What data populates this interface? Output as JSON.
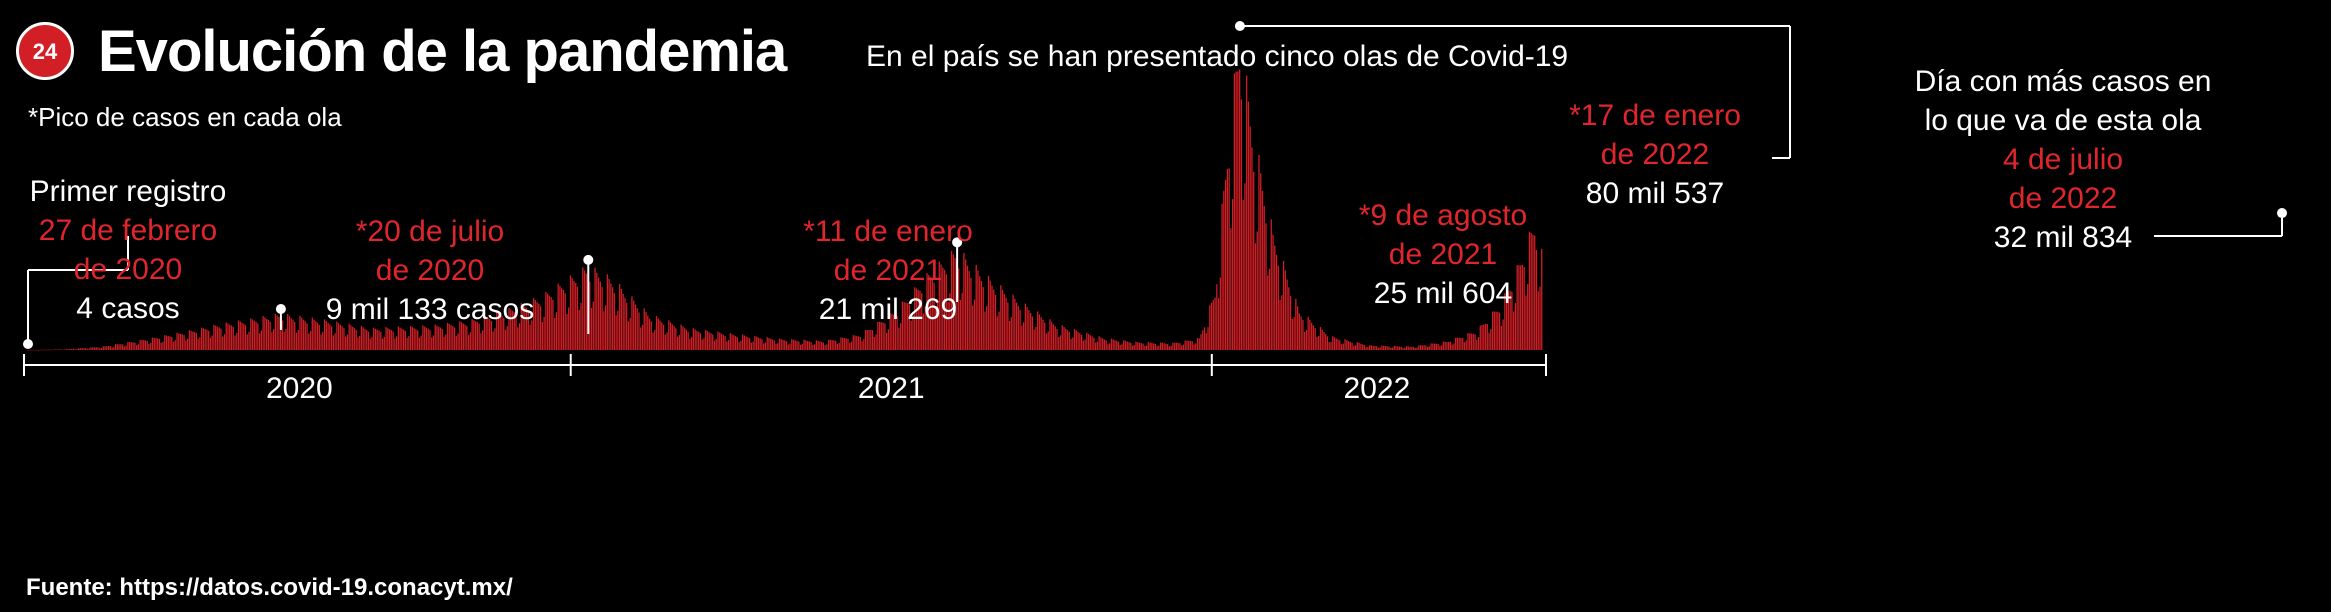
{
  "header": {
    "logo_text": "24",
    "title": "Evolución de la pandemia",
    "subtitle": "En el país se han presentado cinco olas de Covid-19",
    "note": "*Pico de casos en cada ola"
  },
  "annotations": {
    "first": {
      "l1": "Primer registro",
      "l2": "27 de febrero",
      "l3": "de 2020",
      "l4": "4 casos"
    },
    "wave1": {
      "l1": "*20 de julio",
      "l2": "de 2020",
      "l3": "9 mil 133 casos"
    },
    "wave2": {
      "l1": "*11 de enero",
      "l2": "de 2021",
      "l3": "21 mil 269"
    },
    "wave3": {
      "l1": "*9 de agosto",
      "l2": "de 2021",
      "l3": "25 mil 604"
    },
    "wave4": {
      "l1": "*17 de enero",
      "l2": "de 2022",
      "l3": "80 mil 537"
    },
    "wave5": {
      "l1": "Día con más casos en",
      "l2": "lo que va de esta ola",
      "l3": "4 de julio",
      "l4": "de 2022",
      "l5": "32 mil 834"
    }
  },
  "source": "Fuente: https://datos.covid-19.conacyt.mx/",
  "colors": {
    "bar": "#d21f26",
    "label_red": "#e0262d",
    "background": "#000000"
  },
  "chart_data": {
    "type": "bar",
    "title": "Evolución de la pandemia",
    "subtitle": "En el país se han presentado cinco olas de Covid-19",
    "x_start": "2020-02-27",
    "x_end": "2022-07-08",
    "year_labels": [
      "2020",
      "2021",
      "2022"
    ],
    "ylim": [
      0,
      82000
    ],
    "grid": false,
    "anchors": [
      [
        "2020-02-27",
        4
      ],
      [
        "2020-03-20",
        200
      ],
      [
        "2020-04-10",
        900
      ],
      [
        "2020-05-01",
        2500
      ],
      [
        "2020-05-25",
        4500
      ],
      [
        "2020-06-15",
        6500
      ],
      [
        "2020-07-20",
        9133
      ],
      [
        "2020-08-15",
        7500
      ],
      [
        "2020-09-10",
        5500
      ],
      [
        "2020-09-25",
        5800
      ],
      [
        "2020-10-15",
        6200
      ],
      [
        "2020-11-05",
        7500
      ],
      [
        "2020-11-25",
        10000
      ],
      [
        "2020-12-15",
        13500
      ],
      [
        "2021-01-11",
        21269
      ],
      [
        "2021-01-25",
        18000
      ],
      [
        "2021-02-15",
        9000
      ],
      [
        "2021-03-10",
        5500
      ],
      [
        "2021-04-05",
        4000
      ],
      [
        "2021-05-01",
        2800
      ],
      [
        "2021-05-25",
        2300
      ],
      [
        "2021-06-15",
        4000
      ],
      [
        "2021-07-05",
        10000
      ],
      [
        "2021-07-25",
        20000
      ],
      [
        "2021-08-09",
        25604
      ],
      [
        "2021-08-25",
        19000
      ],
      [
        "2021-09-15",
        12000
      ],
      [
        "2021-10-05",
        6500
      ],
      [
        "2021-11-01",
        3000
      ],
      [
        "2021-11-20",
        2000
      ],
      [
        "2021-12-10",
        1800
      ],
      [
        "2021-12-25",
        3000
      ],
      [
        "2022-01-03",
        15000
      ],
      [
        "2022-01-10",
        52000
      ],
      [
        "2022-01-17",
        80537
      ],
      [
        "2022-01-25",
        55000
      ],
      [
        "2022-02-05",
        30000
      ],
      [
        "2022-02-20",
        10000
      ],
      [
        "2022-03-10",
        3500
      ],
      [
        "2022-04-01",
        1200
      ],
      [
        "2022-04-25",
        900
      ],
      [
        "2022-05-15",
        2200
      ],
      [
        "2022-06-01",
        5000
      ],
      [
        "2022-06-15",
        12000
      ],
      [
        "2022-06-25",
        22000
      ],
      [
        "2022-07-04",
        32834
      ],
      [
        "2022-07-08",
        25000
      ]
    ],
    "peaks": [
      {
        "date": "2020-02-27",
        "value": 4
      },
      {
        "date": "2020-07-20",
        "value": 9133
      },
      {
        "date": "2021-01-11",
        "value": 21269
      },
      {
        "date": "2021-08-09",
        "value": 25604
      },
      {
        "date": "2022-01-17",
        "value": 80537
      },
      {
        "date": "2022-07-04",
        "value": 32834
      }
    ]
  }
}
